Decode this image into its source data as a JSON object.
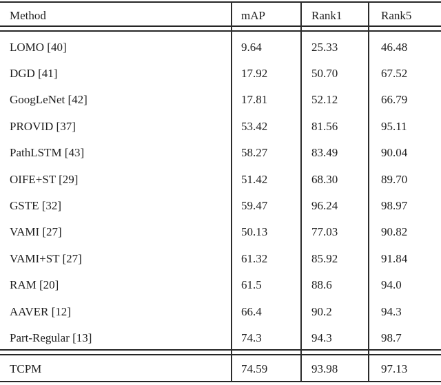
{
  "page": {
    "background_color": "#ffffff",
    "text_color": "#1e1e1e",
    "rule_color": "#262626"
  },
  "table": {
    "columns": [
      "Method",
      "mAP",
      "Rank1",
      "Rank5"
    ],
    "rows": [
      {
        "method": "LOMO [40]",
        "map": "9.64",
        "rank1": "25.33",
        "rank5": "46.48"
      },
      {
        "method": "DGD [41]",
        "map": "17.92",
        "rank1": "50.70",
        "rank5": "67.52"
      },
      {
        "method": "GoogLeNet [42]",
        "map": "17.81",
        "rank1": "52.12",
        "rank5": "66.79"
      },
      {
        "method": "PROVID [37]",
        "map": "53.42",
        "rank1": "81.56",
        "rank5": "95.11"
      },
      {
        "method": "PathLSTM [43]",
        "map": "58.27",
        "rank1": "83.49",
        "rank5": "90.04"
      },
      {
        "method": "OIFE+ST [29]",
        "map": "51.42",
        "rank1": "68.30",
        "rank5": "89.70"
      },
      {
        "method": "GSTE [32]",
        "map": "59.47",
        "rank1": "96.24",
        "rank5": "98.97"
      },
      {
        "method": "VAMI [27]",
        "map": "50.13",
        "rank1": "77.03",
        "rank5": "90.82"
      },
      {
        "method": "VAMI+ST [27]",
        "map": "61.32",
        "rank1": "85.92",
        "rank5": "91.84"
      },
      {
        "method": "RAM [20]",
        "map": "61.5",
        "rank1": "88.6",
        "rank5": "94.0"
      },
      {
        "method": "AAVER [12]",
        "map": "66.4",
        "rank1": "90.2",
        "rank5": "94.3"
      },
      {
        "method": "Part-Regular [13]",
        "map": "74.3",
        "rank1": "94.3",
        "rank5": "98.7"
      }
    ],
    "final_row": {
      "method": "TCPM",
      "map": "74.59",
      "rank1": "93.98",
      "rank5": "97.13"
    }
  },
  "chart_data": {
    "type": "table",
    "title": "",
    "headers": [
      "Method",
      "mAP",
      "Rank1",
      "Rank5"
    ],
    "rows": [
      [
        "LOMO [40]",
        9.64,
        25.33,
        46.48
      ],
      [
        "DGD [41]",
        17.92,
        50.7,
        67.52
      ],
      [
        "GoogLeNet [42]",
        17.81,
        52.12,
        66.79
      ],
      [
        "PROVID [37]",
        53.42,
        81.56,
        95.11
      ],
      [
        "PathLSTM [43]",
        58.27,
        83.49,
        90.04
      ],
      [
        "OIFE+ST [29]",
        51.42,
        68.3,
        89.7
      ],
      [
        "GSTE [32]",
        59.47,
        96.24,
        98.97
      ],
      [
        "VAMI [27]",
        50.13,
        77.03,
        90.82
      ],
      [
        "VAMI+ST [27]",
        61.32,
        85.92,
        91.84
      ],
      [
        "RAM [20]",
        61.5,
        88.6,
        94.0
      ],
      [
        "AAVER [12]",
        66.4,
        90.2,
        94.3
      ],
      [
        "Part-Regular [13]",
        74.3,
        94.3,
        98.7
      ],
      [
        "TCPM",
        74.59,
        93.98,
        97.13
      ]
    ]
  }
}
